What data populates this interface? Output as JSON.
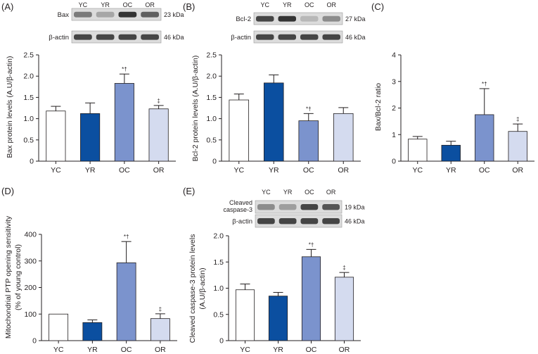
{
  "colors": {
    "YC": "#ffffff",
    "YR": "#0b4fa0",
    "OC": "#7b93cd",
    "OR": "#d4dbef",
    "stroke": "#231f20",
    "blot_bg": "#dcdcdc",
    "band": "#2a2a2a"
  },
  "panels": {
    "A": {
      "letter": "(A)",
      "blot": {
        "lanes": [
          "YC",
          "YR",
          "OC",
          "OR"
        ],
        "rows": [
          {
            "name": "Bax",
            "kda": "23 kDa",
            "intensity": [
              0.55,
              0.3,
              0.95,
              0.7
            ]
          },
          {
            "name": "β-actin",
            "kda": "46 kDa",
            "intensity": [
              0.85,
              0.85,
              0.85,
              0.85
            ]
          }
        ]
      }
    },
    "B": {
      "letter": "(B)",
      "blot": {
        "lanes": [
          "YC",
          "YR",
          "OC",
          "OR"
        ],
        "rows": [
          {
            "name": "Bcl-2",
            "kda": "27 kDa",
            "intensity": [
              0.85,
              0.95,
              0.2,
              0.45
            ]
          },
          {
            "name": "β-actin",
            "kda": "46 kDa",
            "intensity": [
              0.85,
              0.85,
              0.85,
              0.85
            ]
          }
        ]
      }
    },
    "C": {
      "letter": "(C)"
    },
    "D": {
      "letter": "(D)"
    },
    "E": {
      "letter": "(E)",
      "blot": {
        "lanes": [
          "YC",
          "YR",
          "OC",
          "OR"
        ],
        "rows": [
          {
            "name": "Cleaved caspase-3",
            "name_lines": [
              "Cleaved",
              "caspase-3"
            ],
            "kda": "19 kDa",
            "intensity": [
              0.45,
              0.35,
              0.85,
              0.75
            ]
          },
          {
            "name": "β-actin",
            "kda": "46 kDa",
            "intensity": [
              0.85,
              0.85,
              0.85,
              0.85
            ]
          }
        ]
      }
    }
  },
  "chart_data": [
    {
      "panel": "A",
      "type": "bar",
      "categories": [
        "YC",
        "YR",
        "OC",
        "OR"
      ],
      "values": [
        1.18,
        1.12,
        1.83,
        1.23
      ],
      "errors": [
        0.11,
        0.25,
        0.22,
        0.08
      ],
      "annotations": [
        "",
        "",
        "*†",
        "‡"
      ],
      "ylabel": "Bax protein levels (A.U/β-actin)",
      "ylabel_lines": [
        "Bax protein levels (A.U/β-actin)"
      ],
      "ylim": [
        0,
        2.5
      ],
      "yticks": [
        "0",
        "0.5",
        "1.0",
        "1.5",
        "2.0",
        "2.5"
      ],
      "grid": false
    },
    {
      "panel": "B",
      "type": "bar",
      "categories": [
        "YC",
        "YR",
        "OC",
        "OR"
      ],
      "values": [
        1.44,
        1.84,
        0.95,
        1.12
      ],
      "errors": [
        0.14,
        0.19,
        0.17,
        0.14
      ],
      "annotations": [
        "",
        "",
        "*†",
        ""
      ],
      "ylabel": "Bcl-2 protein levels (A.U/β-actin)",
      "ylabel_lines": [
        "Bcl-2 protein levels (A.U/β-actin)"
      ],
      "ylim": [
        0,
        2.5
      ],
      "yticks": [
        "0",
        "0.5",
        "1.0",
        "1.5",
        "2.0",
        "2.5"
      ],
      "grid": false
    },
    {
      "panel": "C",
      "type": "bar",
      "categories": [
        "YC",
        "YR",
        "OC",
        "OR"
      ],
      "values": [
        0.83,
        0.6,
        1.75,
        1.12
      ],
      "errors": [
        0.1,
        0.15,
        0.98,
        0.28
      ],
      "annotations": [
        "",
        "",
        "*†",
        "‡"
      ],
      "ylabel": "Bax/Bcl-2 ratio",
      "ylabel_lines": [
        "Bax/Bcl-2 ratio"
      ],
      "ylim": [
        0,
        4
      ],
      "yticks": [
        "0",
        "1",
        "2",
        "3",
        "4"
      ],
      "grid": false
    },
    {
      "panel": "D",
      "type": "bar",
      "categories": [
        "YC",
        "YR",
        "OC",
        "OR"
      ],
      "values": [
        100,
        68,
        293,
        83
      ],
      "errors": [
        0,
        10,
        80,
        18
      ],
      "annotations": [
        "",
        "",
        "*†",
        "‡"
      ],
      "ylabel": "Mitochondrial PTP opening sensitivity (% of young control)",
      "ylabel_lines": [
        "Mitochondrial PTP opening sensitivity",
        "(% of young control)"
      ],
      "ylim": [
        0,
        400
      ],
      "yticks": [
        "0",
        "100",
        "200",
        "300",
        "400"
      ],
      "grid": false
    },
    {
      "panel": "E",
      "type": "bar",
      "categories": [
        "YC",
        "YR",
        "OC",
        "OR"
      ],
      "values": [
        0.97,
        0.85,
        1.6,
        1.21
      ],
      "errors": [
        0.11,
        0.07,
        0.14,
        0.09
      ],
      "annotations": [
        "",
        "",
        "*†",
        "‡"
      ],
      "ylabel": "Cleaved caspase-3 protein levels (A.U/β-actin)",
      "ylabel_lines": [
        "Cleaved caspase-3 protein levels",
        "(A.U/β-actin)"
      ],
      "ylim": [
        0,
        2.0
      ],
      "yticks": [
        "0",
        "0.5",
        "1.0",
        "1.5",
        "2.0"
      ],
      "grid": false
    }
  ]
}
